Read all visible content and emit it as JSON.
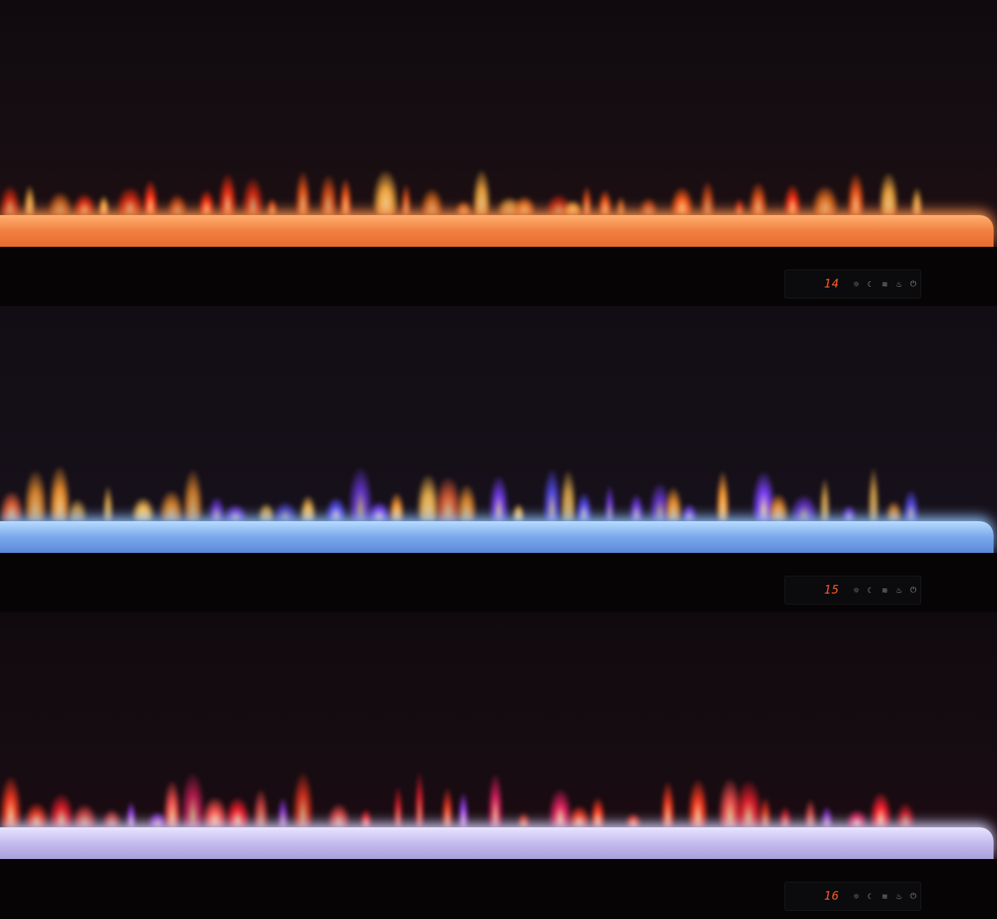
{
  "panels": [
    {
      "temperature": "14",
      "flame_color": "orange-red",
      "ember_bed_color": "#f08a4a",
      "controls": [
        "light-icon",
        "moon-icon",
        "heat-icon",
        "flame-icon",
        "power-icon"
      ]
    },
    {
      "temperature": "15",
      "flame_color": "orange-blue",
      "ember_bed_color": "#8ab8f0",
      "controls": [
        "light-icon",
        "moon-icon",
        "heat-icon",
        "flame-icon",
        "power-icon"
      ]
    },
    {
      "temperature": "16",
      "flame_color": "red-purple",
      "ember_bed_color": "#c8c4ec",
      "controls": [
        "light-icon",
        "moon-icon",
        "heat-icon",
        "flame-icon",
        "power-icon"
      ]
    }
  ],
  "display_color": "#ff5a2a"
}
